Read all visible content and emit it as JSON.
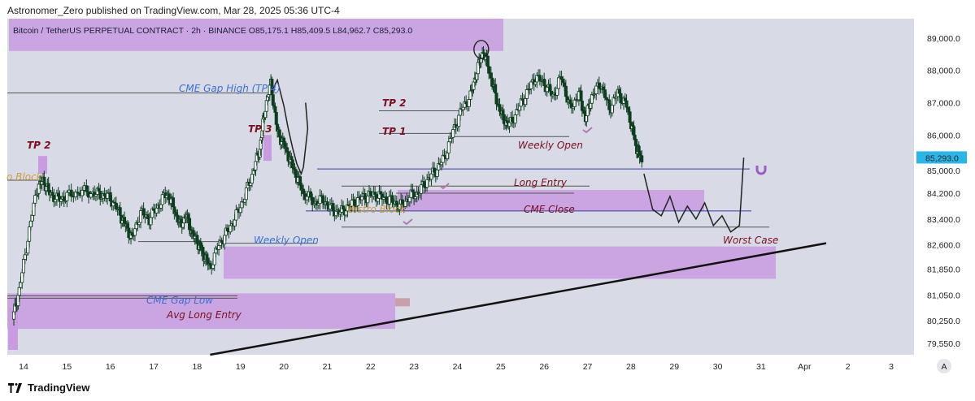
{
  "header": {
    "text": "Astronomer_Zero published on TradingView.com, Mar 28, 2025 05:36 UTC-4"
  },
  "footer": {
    "brand": "TradingView"
  },
  "colors": {
    "zone": "#c99be0",
    "candle": "#0f3d20",
    "level": "#3a3aa8",
    "trend": "#111111",
    "price_tag": "#29b6e8",
    "bg": "#d8dbe5"
  },
  "chart_data": {
    "type": "candlestick",
    "symbol_line": "Bitcoin / TetherUS PERPETUAL CONTRACT · 2h · BINANCE  O85,175.1  H85,409.5  L84,962.7  C85,293.0",
    "ylim": [
      79200,
      89600
    ],
    "y_ticks": [
      {
        "value": 89000,
        "label": "89,000.0"
      },
      {
        "value": 88000,
        "label": "88,000.0"
      },
      {
        "value": 87000,
        "label": "87,000.0"
      },
      {
        "value": 86000,
        "label": "86,000.0"
      },
      {
        "value": 84200,
        "label": "84,200.0"
      },
      {
        "value": 83400,
        "label": "83,400.0"
      },
      {
        "value": 82600,
        "label": "82,600.0"
      },
      {
        "value": 81850,
        "label": "81,850.0"
      },
      {
        "value": 81050,
        "label": "81,050.0"
      },
      {
        "value": 80250,
        "label": "80,250.0"
      },
      {
        "value": 79550,
        "label": "79,550.0"
      }
    ],
    "hidden_tick": {
      "value": 85000,
      "label": "85,000.0"
    },
    "last_price": {
      "value": 85293,
      "label": "85,293.0"
    },
    "x_ticks": [
      {
        "label": "14",
        "day": 14
      },
      {
        "label": "15",
        "day": 15
      },
      {
        "label": "16",
        "day": 16
      },
      {
        "label": "17",
        "day": 17
      },
      {
        "label": "18",
        "day": 18
      },
      {
        "label": "19",
        "day": 19
      },
      {
        "label": "20",
        "day": 20
      },
      {
        "label": "21",
        "day": 21
      },
      {
        "label": "22",
        "day": 22
      },
      {
        "label": "23",
        "day": 23
      },
      {
        "label": "24",
        "day": 24
      },
      {
        "label": "25",
        "day": 25
      },
      {
        "label": "26",
        "day": 26
      },
      {
        "label": "27",
        "day": 27
      },
      {
        "label": "28",
        "day": 28
      },
      {
        "label": "29",
        "day": 29
      },
      {
        "label": "30",
        "day": 30
      },
      {
        "label": "31",
        "day": 31
      },
      {
        "label": "Apr",
        "day": 32
      },
      {
        "label": "2",
        "day": 33
      },
      {
        "label": "3",
        "day": 34
      }
    ],
    "path": [
      [
        13.75,
        80300
      ],
      [
        13.9,
        81200
      ],
      [
        14.1,
        82800
      ],
      [
        14.3,
        84300
      ],
      [
        14.45,
        84600
      ],
      [
        14.6,
        84200
      ],
      [
        14.8,
        84000
      ],
      [
        15.0,
        84100
      ],
      [
        15.3,
        84250
      ],
      [
        15.6,
        84200
      ],
      [
        15.8,
        84150
      ],
      [
        16.0,
        84050
      ],
      [
        16.2,
        83600
      ],
      [
        16.35,
        83200
      ],
      [
        16.5,
        82800
      ],
      [
        16.7,
        83600
      ],
      [
        16.9,
        83400
      ],
      [
        17.1,
        83800
      ],
      [
        17.3,
        84200
      ],
      [
        17.45,
        83800
      ],
      [
        17.6,
        83200
      ],
      [
        17.75,
        83500
      ],
      [
        17.9,
        82900
      ],
      [
        18.05,
        82600
      ],
      [
        18.15,
        82300
      ],
      [
        18.3,
        81900
      ],
      [
        18.5,
        82600
      ],
      [
        18.7,
        83000
      ],
      [
        18.9,
        83500
      ],
      [
        19.1,
        84100
      ],
      [
        19.3,
        84900
      ],
      [
        19.45,
        85600
      ],
      [
        19.55,
        86700
      ],
      [
        19.7,
        87600
      ],
      [
        19.85,
        86100
      ],
      [
        20.0,
        85700
      ],
      [
        20.15,
        85200
      ],
      [
        20.3,
        84700
      ],
      [
        20.45,
        84200
      ],
      [
        20.7,
        83900
      ],
      [
        20.9,
        84000
      ],
      [
        21.1,
        83700
      ],
      [
        21.3,
        83600
      ],
      [
        21.5,
        83800
      ],
      [
        21.7,
        84000
      ],
      [
        21.9,
        84100
      ],
      [
        22.1,
        84150
      ],
      [
        22.3,
        84050
      ],
      [
        22.5,
        83950
      ],
      [
        22.7,
        83800
      ],
      [
        22.9,
        84100
      ],
      [
        23.1,
        84200
      ],
      [
        23.3,
        84600
      ],
      [
        23.5,
        84900
      ],
      [
        23.7,
        85300
      ],
      [
        23.9,
        86100
      ],
      [
        24.1,
        86800
      ],
      [
        24.3,
        87200
      ],
      [
        24.45,
        88000
      ],
      [
        24.6,
        88600
      ],
      [
        24.75,
        87900
      ],
      [
        24.9,
        87100
      ],
      [
        25.05,
        86500
      ],
      [
        25.2,
        86300
      ],
      [
        25.4,
        86800
      ],
      [
        25.6,
        87300
      ],
      [
        25.8,
        87800
      ],
      [
        26.0,
        87600
      ],
      [
        26.2,
        87200
      ],
      [
        26.4,
        87800
      ],
      [
        26.6,
        86800
      ],
      [
        26.8,
        87300
      ],
      [
        26.95,
        86500
      ],
      [
        27.1,
        87200
      ],
      [
        27.3,
        87600
      ],
      [
        27.5,
        86800
      ],
      [
        27.7,
        87300
      ],
      [
        27.9,
        86900
      ],
      [
        28.05,
        86100
      ],
      [
        28.15,
        85500
      ],
      [
        28.25,
        85293
      ]
    ],
    "path_note": "approximate close values",
    "levels": [
      {
        "label": "CME Gap High (TP 4)",
        "value": 87300
      },
      {
        "label": "Long Entry",
        "value": 84950
      },
      {
        "label": "CME Close",
        "value": 83650
      },
      {
        "label": "Weekly Open",
        "value": 82650
      },
      {
        "label": "Weekly Open",
        "value": 85950
      },
      {
        "label": "TP 1",
        "value": 86050
      },
      {
        "label": "TP 2",
        "value": 86750
      },
      {
        "label": "Avg Long Entry",
        "value": 80950
      },
      {
        "label": "CME Gap Low",
        "value": 81020
      },
      {
        "label": "Worst Case",
        "value": 83150
      }
    ],
    "zones": [
      {
        "top": 89600,
        "bottom": 88600
      },
      {
        "top": 82550,
        "bottom": 81550
      },
      {
        "top": 81100,
        "bottom": 80000
      },
      {
        "top": 84300,
        "bottom": 83650
      }
    ],
    "annotations": [
      {
        "text": "TP 2",
        "color": "#7a1020"
      },
      {
        "text": "TP 3",
        "color": "#7a1020"
      },
      {
        "text": "TP 2",
        "color": "#7a1020"
      },
      {
        "text": "TP 1",
        "color": "#7a1020"
      },
      {
        "text": "CME Gap High (TP 4)",
        "color": "#3a6fd8"
      },
      {
        "text": "Weekly Open",
        "color": "#3a6fd8"
      },
      {
        "text": "CME Gap Low",
        "color": "#3a6fd8"
      },
      {
        "text": "Avg Long Entry",
        "color": "#7a1020"
      },
      {
        "text": "Weekly Open",
        "color": "#7a1020"
      },
      {
        "text": "Long Entry",
        "color": "#7a1020"
      },
      {
        "text": "CME Close",
        "color": "#7a1020"
      },
      {
        "text": "Worst Case",
        "color": "#7a1020"
      },
      {
        "text": "o Block",
        "color": "#c8a040"
      },
      {
        "text": "Bistro Block",
        "color": "#c8a040"
      }
    ],
    "trendline": {
      "from": [
        18.3,
        79200
      ],
      "to": [
        32.5,
        82650
      ]
    },
    "projection": [
      [
        28.3,
        84800
      ],
      [
        28.5,
        83700
      ],
      [
        28.7,
        83500
      ],
      [
        28.9,
        84100
      ],
      [
        29.1,
        83300
      ],
      [
        29.3,
        83800
      ],
      [
        29.5,
        83400
      ],
      [
        29.7,
        83900
      ],
      [
        29.9,
        83200
      ],
      [
        30.1,
        83500
      ],
      [
        30.3,
        83000
      ],
      [
        30.5,
        83200
      ],
      [
        30.6,
        85300
      ]
    ],
    "grid": false
  }
}
